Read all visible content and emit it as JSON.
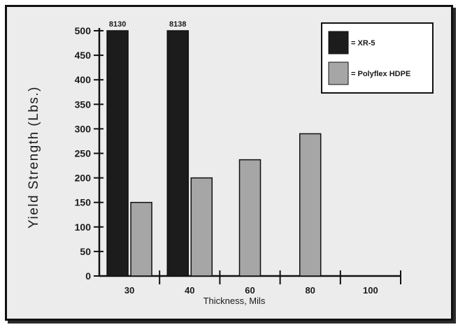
{
  "chart_data": {
    "type": "bar",
    "title": "",
    "xlabel": "Thickness, Mils",
    "ylabel": "Yield Strength (Lbs.)",
    "ylim": [
      0,
      500
    ],
    "yticks": [
      "0",
      "50",
      "100",
      "150",
      "200",
      "250",
      "300",
      "350",
      "400",
      "450",
      "500"
    ],
    "categories": [
      "30",
      "40",
      "60",
      "80",
      "100"
    ],
    "series": [
      {
        "name": "= XR-5",
        "color": "#1c1c1c",
        "values": [
          8130,
          8138,
          null,
          null,
          null
        ],
        "data_labels": [
          "8130",
          "8138",
          "",
          "",
          ""
        ]
      },
      {
        "name": "= Polyflex HDPE",
        "color": "#a6a6a6",
        "values": [
          150,
          200,
          237,
          290,
          null
        ],
        "data_labels": [
          "",
          "",
          "",
          "",
          ""
        ]
      }
    ],
    "legend_position": "top-right",
    "grid": false
  }
}
